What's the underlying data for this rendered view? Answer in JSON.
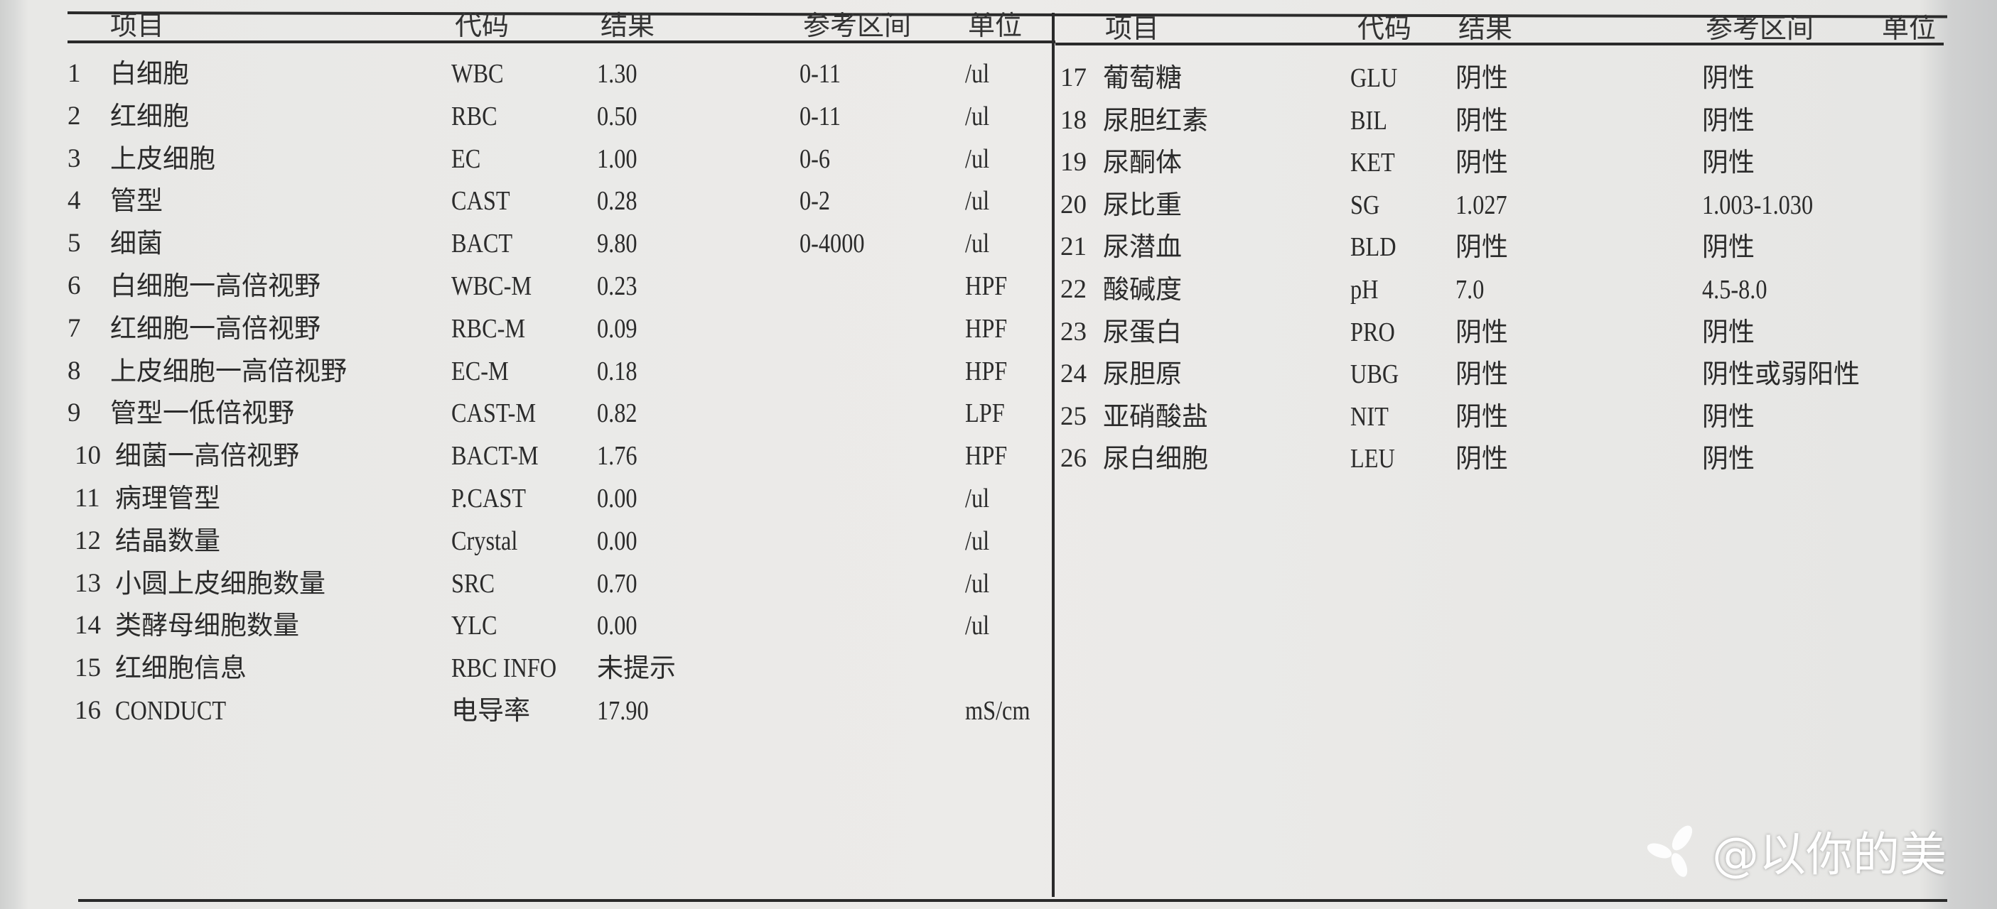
{
  "left_table": {
    "headers": {
      "item": "项目",
      "code": "代码",
      "result": "结果",
      "reference": "参考区间",
      "unit": "单位"
    },
    "rows": [
      {
        "no": "1",
        "item": "白细胞",
        "code": "WBC",
        "result": "1.30",
        "reference": "0-11",
        "unit": "/ul"
      },
      {
        "no": "2",
        "item": "红细胞",
        "code": "RBC",
        "result": "0.50",
        "reference": "0-11",
        "unit": "/ul"
      },
      {
        "no": "3",
        "item": "上皮细胞",
        "code": "EC",
        "result": "1.00",
        "reference": "0-6",
        "unit": "/ul"
      },
      {
        "no": "4",
        "item": "管型",
        "code": "CAST",
        "result": "0.28",
        "reference": "0-2",
        "unit": "/ul"
      },
      {
        "no": "5",
        "item": "细菌",
        "code": "BACT",
        "result": "9.80",
        "reference": "0-4000",
        "unit": "/ul"
      },
      {
        "no": "6",
        "item": "白细胞一高倍视野",
        "code": "WBC-M",
        "result": "0.23",
        "reference": "",
        "unit": "HPF"
      },
      {
        "no": "7",
        "item": "红细胞一高倍视野",
        "code": "RBC-M",
        "result": "0.09",
        "reference": "",
        "unit": "HPF"
      },
      {
        "no": "8",
        "item": "上皮细胞一高倍视野",
        "code": "EC-M",
        "result": "0.18",
        "reference": "",
        "unit": "HPF"
      },
      {
        "no": "9",
        "item": "管型一低倍视野",
        "code": "CAST-M",
        "result": "0.82",
        "reference": "",
        "unit": "LPF"
      },
      {
        "no": "10",
        "item": "细菌一高倍视野",
        "code": "BACT-M",
        "result": "1.76",
        "reference": "",
        "unit": "HPF"
      },
      {
        "no": "11",
        "item": "病理管型",
        "code": "P.CAST",
        "result": "0.00",
        "reference": "",
        "unit": "/ul"
      },
      {
        "no": "12",
        "item": "结晶数量",
        "code": "Crystal",
        "result": "0.00",
        "reference": "",
        "unit": "/ul"
      },
      {
        "no": "13",
        "item": "小圆上皮细胞数量",
        "code": "SRC",
        "result": "0.70",
        "reference": "",
        "unit": "/ul"
      },
      {
        "no": "14",
        "item": "类酵母细胞数量",
        "code": "YLC",
        "result": "0.00",
        "reference": "",
        "unit": "/ul"
      },
      {
        "no": "15",
        "item": "红细胞信息",
        "code": "RBC INFO",
        "result": "未提示",
        "reference": "",
        "unit": ""
      },
      {
        "no": "16",
        "item": "CONDUCT",
        "code": "电导率",
        "result": "17.90",
        "reference": "",
        "unit": "mS/cm"
      }
    ]
  },
  "right_table": {
    "headers": {
      "item": "项目",
      "code": "代码",
      "result": "结果",
      "reference": "参考区间",
      "unit": "单位"
    },
    "rows": [
      {
        "no": "17",
        "item": "葡萄糖",
        "code": "GLU",
        "result": "阴性",
        "reference": "阴性",
        "unit": ""
      },
      {
        "no": "18",
        "item": "尿胆红素",
        "code": "BIL",
        "result": "阴性",
        "reference": "阴性",
        "unit": ""
      },
      {
        "no": "19",
        "item": "尿酮体",
        "code": "KET",
        "result": "阴性",
        "reference": "阴性",
        "unit": ""
      },
      {
        "no": "20",
        "item": "尿比重",
        "code": "SG",
        "result": "1.027",
        "reference": "1.003-1.030",
        "unit": ""
      },
      {
        "no": "21",
        "item": "尿潜血",
        "code": "BLD",
        "result": "阴性",
        "reference": "阴性",
        "unit": ""
      },
      {
        "no": "22",
        "item": "酸碱度",
        "code": "pH",
        "result": "7.0",
        "reference": "4.5-8.0",
        "unit": ""
      },
      {
        "no": "23",
        "item": "尿蛋白",
        "code": "PRO",
        "result": "阴性",
        "reference": "阴性",
        "unit": ""
      },
      {
        "no": "24",
        "item": "尿胆原",
        "code": "UBG",
        "result": "阴性",
        "reference": "阴性或弱阳性",
        "unit": ""
      },
      {
        "no": "25",
        "item": "亚硝酸盐",
        "code": "NIT",
        "result": "阴性",
        "reference": "阴性",
        "unit": ""
      },
      {
        "no": "26",
        "item": "尿白细胞",
        "code": "LEU",
        "result": "阴性",
        "reference": "阴性",
        "unit": ""
      }
    ]
  },
  "watermark": {
    "text": "@以你的美",
    "icon": "leaf-flower-logo-icon"
  }
}
